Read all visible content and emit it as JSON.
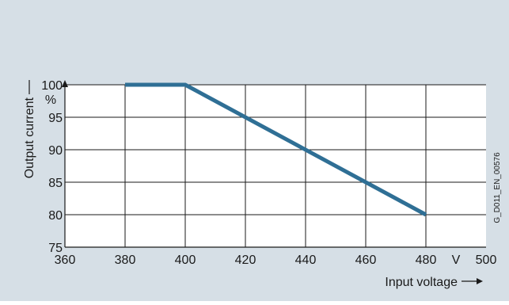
{
  "chart_data": {
    "type": "line",
    "x": [
      380,
      400,
      480
    ],
    "y": [
      100,
      100,
      80
    ],
    "xlim": [
      360,
      500
    ],
    "ylim": [
      75,
      100
    ],
    "x_ticks": [
      "360",
      "380",
      "400",
      "420",
      "440",
      "460",
      "480",
      "500"
    ],
    "y_ticks": [
      "75",
      "80",
      "85",
      "90",
      "95",
      "100"
    ],
    "xlabel": "Input voltage",
    "ylabel": "Output current",
    "x_unit": "V",
    "y_unit": "%",
    "grid": true,
    "figure_id": "G_D011_EN_00576",
    "colors": {
      "background": "#d6dfe6",
      "plot_area": "#ffffff",
      "line": "#2f6f95",
      "grid": "#1a1a1a"
    }
  }
}
